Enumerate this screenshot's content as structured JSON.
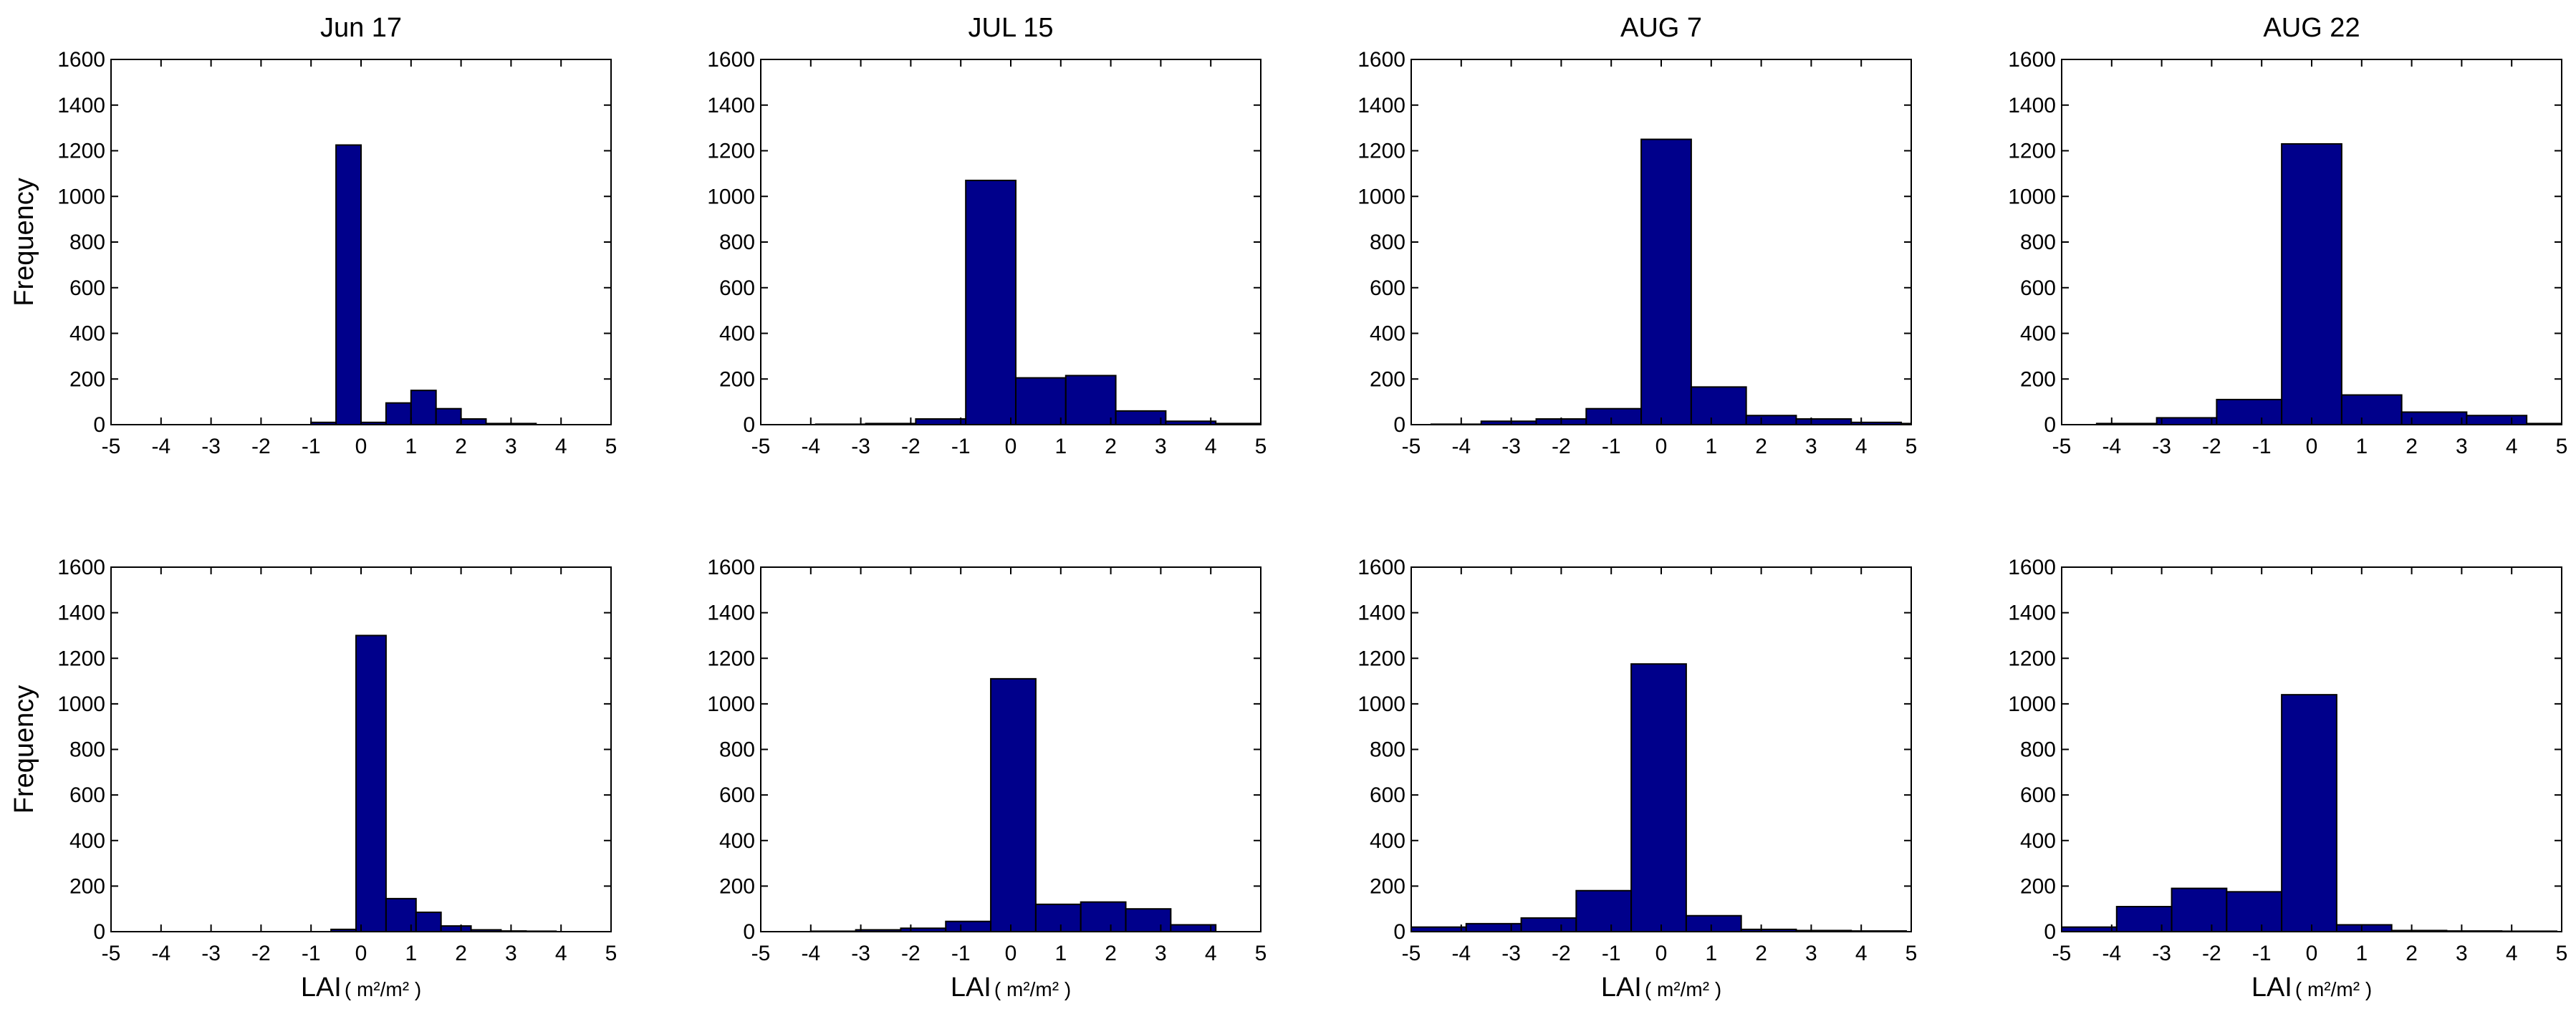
{
  "figure": {
    "bar_color": "#00008B",
    "frame_color": "#000000",
    "background": "#ffffff"
  },
  "chart_data": [
    {
      "type": "bar",
      "title": "Jun 17",
      "xlabel": "",
      "ylabel": "Frequency",
      "xlim": [
        -5,
        5
      ],
      "ylim": [
        0,
        1600
      ],
      "xticks": [
        "-5",
        "-4",
        "-3",
        "-2",
        "-1",
        "0",
        "1",
        "2",
        "3",
        "4",
        "5"
      ],
      "yticks": [
        "0",
        "200",
        "400",
        "600",
        "800",
        "1000",
        "1200",
        "1400",
        "1600"
      ],
      "bin_edges": [
        -1.0,
        -0.5,
        0.0,
        0.5,
        1.0,
        1.5,
        2.0,
        2.5,
        3.0,
        3.5
      ],
      "values": [
        10,
        1225,
        10,
        95,
        150,
        70,
        25,
        5,
        5
      ]
    },
    {
      "type": "bar",
      "title": "JUL 15",
      "xlabel": "",
      "ylabel": "",
      "xlim": [
        -5,
        5
      ],
      "ylim": [
        0,
        1600
      ],
      "xticks": [
        "-5",
        "-4",
        "-3",
        "-2",
        "-1",
        "0",
        "1",
        "2",
        "3",
        "4",
        "5"
      ],
      "yticks": [
        "0",
        "200",
        "400",
        "600",
        "800",
        "1000",
        "1200",
        "1400",
        "1600"
      ],
      "bin_edges": [
        -3.9,
        -2.9,
        -1.9,
        -0.9,
        0.1,
        1.1,
        2.1,
        3.1,
        4.1,
        5.1
      ],
      "values": [
        2,
        5,
        25,
        1070,
        205,
        215,
        60,
        15,
        5
      ]
    },
    {
      "type": "bar",
      "title": "AUG 7",
      "xlabel": "",
      "ylabel": "",
      "xlim": [
        -5,
        5
      ],
      "ylim": [
        0,
        1600
      ],
      "xticks": [
        "-5",
        "-4",
        "-3",
        "-2",
        "-1",
        "0",
        "1",
        "2",
        "3",
        "4",
        "5"
      ],
      "yticks": [
        "0",
        "200",
        "400",
        "600",
        "800",
        "1000",
        "1200",
        "1400",
        "1600"
      ],
      "bin_edges": [
        -4.6,
        -3.6,
        -2.5,
        -1.5,
        -0.4,
        0.6,
        1.7,
        2.7,
        3.8,
        4.8,
        5.9
      ],
      "values": [
        2,
        15,
        25,
        70,
        1250,
        165,
        40,
        25,
        10,
        5
      ]
    },
    {
      "type": "bar",
      "title": "AUG 22",
      "xlabel": "",
      "ylabel": "",
      "xlim": [
        -5,
        5
      ],
      "ylim": [
        0,
        1600
      ],
      "xticks": [
        "-5",
        "-4",
        "-3",
        "-2",
        "-1",
        "0",
        "1",
        "2",
        "3",
        "4",
        "5"
      ],
      "yticks": [
        "0",
        "200",
        "400",
        "600",
        "800",
        "1000",
        "1200",
        "1400",
        "1600"
      ],
      "bin_edges": [
        -4.3,
        -3.1,
        -1.9,
        -0.6,
        0.6,
        1.8,
        3.1,
        4.3,
        5.5
      ],
      "values": [
        5,
        30,
        110,
        1230,
        130,
        55,
        40,
        5
      ]
    },
    {
      "type": "bar",
      "title": "",
      "xlabel": "LAI",
      "xlabel_unit": "( m²/m² )",
      "ylabel": "Frequency",
      "xlim": [
        -5,
        5
      ],
      "ylim": [
        0,
        1600
      ],
      "xticks": [
        "-5",
        "-4",
        "-3",
        "-2",
        "-1",
        "0",
        "1",
        "2",
        "3",
        "4",
        "5"
      ],
      "yticks": [
        "0",
        "200",
        "400",
        "600",
        "800",
        "1000",
        "1200",
        "1400",
        "1600"
      ],
      "bin_edges": [
        -0.6,
        -0.1,
        0.5,
        1.1,
        1.6,
        2.2,
        2.8,
        3.3,
        3.9
      ],
      "values": [
        10,
        1300,
        145,
        85,
        25,
        8,
        3,
        2
      ]
    },
    {
      "type": "bar",
      "title": "",
      "xlabel": "LAI",
      "xlabel_unit": "( m²/m² )",
      "ylabel": "",
      "xlim": [
        -5,
        5
      ],
      "ylim": [
        0,
        1600
      ],
      "xticks": [
        "-5",
        "-4",
        "-3",
        "-2",
        "-1",
        "0",
        "1",
        "2",
        "3",
        "4",
        "5"
      ],
      "yticks": [
        "0",
        "200",
        "400",
        "600",
        "800",
        "1000",
        "1200",
        "1400",
        "1600"
      ],
      "bin_edges": [
        -4.0,
        -3.1,
        -2.2,
        -1.3,
        -0.4,
        0.5,
        1.4,
        2.3,
        3.2,
        4.1
      ],
      "values": [
        2,
        8,
        15,
        45,
        1110,
        120,
        130,
        100,
        30
      ]
    },
    {
      "type": "bar",
      "title": "",
      "xlabel": "LAI",
      "xlabel_unit": "( m²/m² )",
      "ylabel": "",
      "xlim": [
        -5,
        5
      ],
      "ylim": [
        0,
        1600
      ],
      "xticks": [
        "-5",
        "-4",
        "-3",
        "-2",
        "-1",
        "0",
        "1",
        "2",
        "3",
        "4",
        "5"
      ],
      "yticks": [
        "0",
        "200",
        "400",
        "600",
        "800",
        "1000",
        "1200",
        "1400",
        "1600"
      ],
      "bin_edges": [
        -5.0,
        -3.9,
        -2.8,
        -1.7,
        -0.6,
        0.5,
        1.6,
        2.7,
        3.8,
        4.9
      ],
      "values": [
        20,
        35,
        60,
        180,
        1175,
        70,
        10,
        5,
        3
      ]
    },
    {
      "type": "bar",
      "title": "",
      "xlabel": "LAI",
      "xlabel_unit": "( m²/m² )",
      "ylabel": "",
      "xlim": [
        -5,
        5
      ],
      "ylim": [
        0,
        1600
      ],
      "xticks": [
        "-5",
        "-4",
        "-3",
        "-2",
        "-1",
        "0",
        "1",
        "2",
        "3",
        "4",
        "5"
      ],
      "yticks": [
        "0",
        "200",
        "400",
        "600",
        "800",
        "1000",
        "1200",
        "1400",
        "1600"
      ],
      "bin_edges": [
        -5.0,
        -3.9,
        -2.8,
        -1.7,
        -0.6,
        0.5,
        1.6,
        2.7,
        3.8,
        4.9
      ],
      "values": [
        20,
        110,
        190,
        175,
        1040,
        30,
        5,
        3,
        2
      ]
    }
  ]
}
